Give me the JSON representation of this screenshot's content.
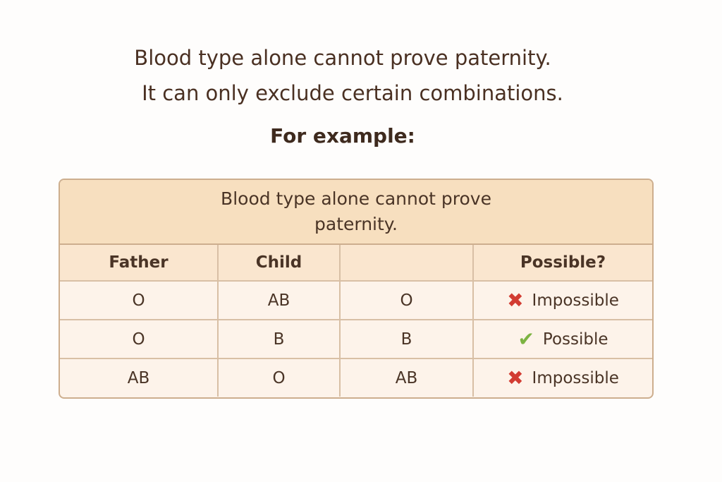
{
  "intro": {
    "line1": "Blood type alone cannot prove paternity.",
    "line2": "It can only exclude certain combinations.",
    "example": "For example:"
  },
  "table": {
    "caption": "Blood type alone cannot prove paternity.",
    "headers": [
      "Father",
      "Child",
      "",
      "Possible?"
    ],
    "rows": [
      {
        "father": "O",
        "child": "AB",
        "third": "O",
        "result": "Impossible",
        "icon": "cross-icon"
      },
      {
        "father": "O",
        "child": "B",
        "third": "B",
        "result": "Possible",
        "icon": "check-icon"
      },
      {
        "father": "AB",
        "child": "O",
        "third": "AB",
        "result": "Impossible",
        "icon": "cross-icon"
      }
    ]
  },
  "colors": {
    "cross": "#d23c32",
    "check": "#7cb342",
    "caption_bg": "#f7dfbf",
    "border": "#cdae8e"
  }
}
